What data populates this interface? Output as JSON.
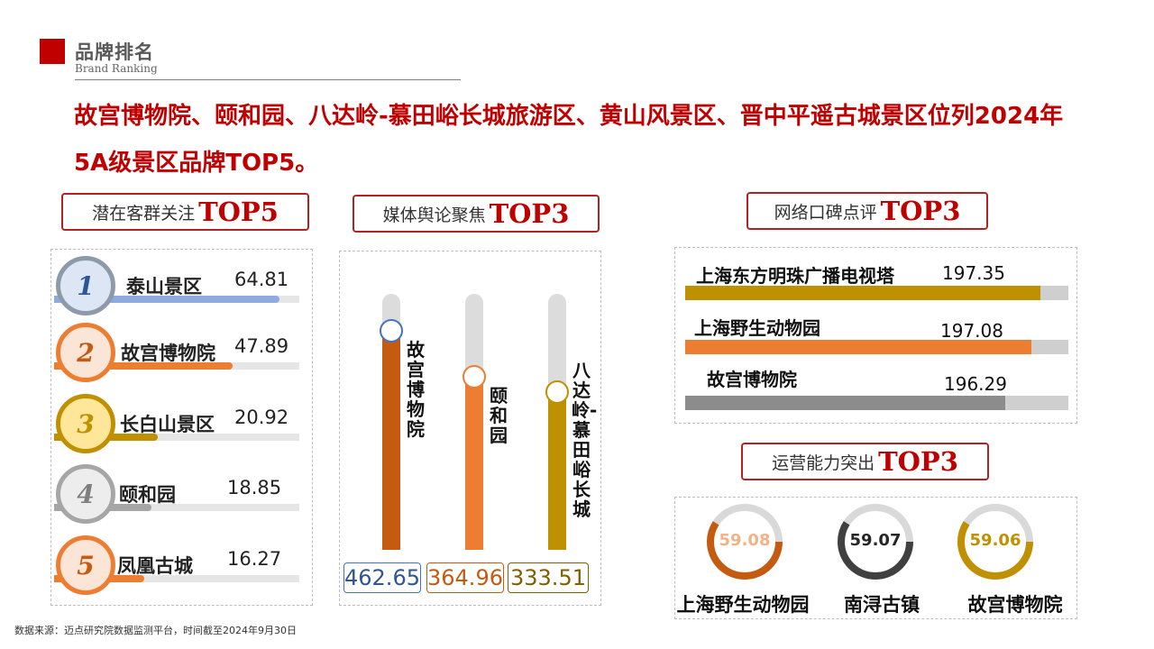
{
  "header": {
    "title": "品牌排名",
    "subtitle": "Brand Ranking",
    "headline_line1": "故宫博物院、颐和园、八达岭-慕田峪长城旅游区、黄山风景区、晋中平遥古城景区位列2024年",
    "headline_line2": "5A级景区品牌TOP5。"
  },
  "footnote": "数据来源：迈点研究院数据监测平台，时间截至2024年9月30日",
  "colors": {
    "accent": "#c00000",
    "blue": "#8faadc",
    "orange": "#ed7d31",
    "gold": "#bf9000",
    "gray": "#8c8c8c",
    "dark_orange": "#c55a11"
  },
  "sections": {
    "potential": {
      "label": "潜在客群关注",
      "top": "TOP5"
    },
    "media": {
      "label": "媒体舆论聚焦",
      "top": "TOP3"
    },
    "wom": {
      "label": "网络口碑点评",
      "top": "TOP3"
    },
    "ops": {
      "label": "运营能力突出",
      "top": "TOP3"
    }
  },
  "chart_data": [
    {
      "type": "bar",
      "title": "潜在客群关注TOP5",
      "ranks": [
        "1",
        "2",
        "3",
        "4",
        "5"
      ],
      "categories": [
        "泰山景区",
        "故宫博物院",
        "长白山景区",
        "颐和园",
        "凤凰古城"
      ],
      "values": [
        64.81,
        47.89,
        20.92,
        18.85,
        16.27
      ],
      "labels": [
        "64.81",
        "47.89",
        "20.92",
        "18.85",
        "16.27"
      ]
    },
    {
      "type": "bar",
      "title": "媒体舆论聚焦TOP3",
      "categories": [
        "故宫博物院",
        "颐和园",
        "八达岭-慕田峪长城"
      ],
      "values": [
        462.65,
        364.96,
        333.51
      ],
      "labels": [
        "462.65",
        "364.96",
        "333.51"
      ]
    },
    {
      "type": "bar",
      "title": "网络口碑点评TOP3",
      "categories": [
        "上海东方明珠广播电视塔",
        "上海野生动物园",
        "故宫博物院"
      ],
      "values": [
        197.35,
        197.08,
        196.29
      ],
      "labels": [
        "197.35",
        "197.08",
        "196.29"
      ]
    },
    {
      "type": "pie",
      "title": "运营能力突出TOP3",
      "categories": [
        "上海野生动物园",
        "南浔古镇",
        "故宫博物院"
      ],
      "values": [
        59.08,
        59.07,
        59.06
      ],
      "labels": [
        "59.08",
        "59.07",
        "59.06"
      ]
    }
  ]
}
